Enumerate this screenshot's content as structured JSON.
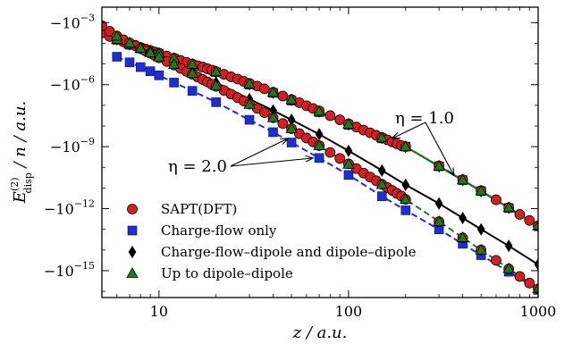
{
  "chart_data": {
    "type": "scatter",
    "xlabel": "z / a.u.",
    "ylabel_main": "E",
    "ylabel_sup": "(2)",
    "ylabel_sub": "disp",
    "ylabel_rest": " / n / a.u.",
    "x_scale": "log",
    "y_scale": "symlog-negative",
    "xlim": [
      5,
      1000
    ],
    "ylim_exponent": [
      -16.3,
      -2.25
    ],
    "grid": false,
    "legend_placement": "lower-left",
    "x_ticks": [
      {
        "value": 10,
        "label": "10"
      },
      {
        "value": 100,
        "label": "100"
      },
      {
        "value": 1000,
        "label": "1000"
      }
    ],
    "y_ticks": [
      {
        "exponent": -3,
        "base": "−10",
        "sup": "−3"
      },
      {
        "exponent": -6,
        "base": "−10",
        "sup": "−6"
      },
      {
        "exponent": -9,
        "base": "−10",
        "sup": "−9"
      },
      {
        "exponent": -12,
        "base": "−10",
        "sup": "−12"
      },
      {
        "exponent": -15,
        "base": "−10",
        "sup": "−15"
      }
    ],
    "legend": [
      {
        "label": "SAPT(DFT)",
        "marker": "circle",
        "color": "#d62020"
      },
      {
        "label": "Charge-flow only",
        "marker": "square",
        "color": "#1c2fd0"
      },
      {
        "label": "Charge-flow–dipole and dipole–dipole",
        "marker": "diamond",
        "color": "#000000"
      },
      {
        "label": "Up to dipole–dipole",
        "marker": "triangle",
        "color": "#1a7d1a"
      }
    ],
    "annotations": [
      {
        "label": "η = 1.0",
        "targets": [
          [
            170,
            -8.6
          ],
          [
            360,
            -10.4
          ]
        ]
      },
      {
        "label": "η = 2.0",
        "targets": [
          [
            48,
            -8.6
          ],
          [
            65,
            -9.55
          ]
        ]
      }
    ],
    "series": [
      {
        "name": "SAPT(DFT)",
        "group": "eta_1.0",
        "marker": "circle",
        "color": "#d62020",
        "x": [
          5,
          5.5,
          6,
          6.5,
          7,
          7.5,
          8,
          8.5,
          9,
          9.5,
          10,
          11,
          12,
          13,
          14,
          15,
          16,
          17,
          18,
          19,
          20,
          22,
          24,
          26,
          28,
          30,
          33,
          36,
          40,
          45,
          50,
          55,
          60,
          65,
          70,
          80,
          90,
          100,
          110,
          120,
          130,
          140,
          150,
          160,
          170,
          180,
          190,
          200,
          300,
          400,
          500,
          600,
          700,
          800,
          900,
          1000
        ],
        "y": [
          -3.5,
          -3.67,
          -3.8,
          -3.93,
          -4.02,
          -4.1,
          -4.2,
          -4.28,
          -4.35,
          -4.42,
          -4.48,
          -4.62,
          -4.72,
          -4.83,
          -4.92,
          -5.0,
          -5.08,
          -5.15,
          -5.23,
          -5.3,
          -5.37,
          -5.5,
          -5.62,
          -5.73,
          -5.84,
          -5.94,
          -6.07,
          -6.2,
          -6.37,
          -6.55,
          -6.72,
          -6.87,
          -7.02,
          -7.15,
          -7.27,
          -7.5,
          -7.7,
          -7.9,
          -8.05,
          -8.2,
          -8.33,
          -8.45,
          -8.56,
          -8.67,
          -8.77,
          -8.86,
          -8.95,
          -9.0,
          -9.93,
          -10.6,
          -11.13,
          -11.57,
          -11.95,
          -12.28,
          -12.57,
          -12.83
        ]
      },
      {
        "name": "Charge-flow only",
        "group": "eta_1.0",
        "marker": "square",
        "color": "#1c2fd0",
        "x": [
          6,
          7,
          8,
          9,
          10,
          12,
          15,
          20,
          30,
          40,
          50,
          70,
          100,
          150,
          200,
          300,
          400,
          500,
          700,
          1000
        ],
        "y": [
          -3.83,
          -4.07,
          -4.25,
          -4.4,
          -4.5,
          -4.75,
          -5.05,
          -5.4,
          -6.0,
          -6.4,
          -6.77,
          -7.33,
          -7.95,
          -8.6,
          -9.0,
          -9.95,
          -10.62,
          -11.15,
          -11.97,
          -12.85
        ]
      },
      {
        "name": "Charge-flow–dipole and dipole–dipole",
        "group": "eta_1.0",
        "marker": "diamond",
        "color": "#000000",
        "x": [
          6,
          7,
          8,
          9,
          10,
          12,
          15,
          20,
          30,
          40,
          50,
          70,
          100,
          150,
          200,
          300,
          400,
          500,
          700,
          1000
        ],
        "y": [
          -3.8,
          -4.05,
          -4.23,
          -4.37,
          -4.49,
          -4.73,
          -5.02,
          -5.38,
          -5.97,
          -6.38,
          -6.74,
          -7.3,
          -7.92,
          -8.58,
          -9.0,
          -9.95,
          -10.62,
          -11.15,
          -11.96,
          -12.84
        ]
      },
      {
        "name": "Up to dipole–dipole",
        "group": "eta_1.0",
        "marker": "triangle",
        "color": "#1a7d1a",
        "x": [
          6,
          7,
          8,
          9,
          10,
          12,
          15,
          20,
          30,
          40,
          50,
          70,
          100,
          150,
          200,
          300,
          400,
          500,
          700,
          1000
        ],
        "y": [
          -3.8,
          -4.04,
          -4.22,
          -4.37,
          -4.48,
          -4.72,
          -5.01,
          -5.37,
          -5.96,
          -6.37,
          -6.73,
          -7.29,
          -7.91,
          -8.57,
          -9.0,
          -9.94,
          -10.61,
          -11.14,
          -11.95,
          -12.83
        ]
      },
      {
        "name": "SAPT(DFT)",
        "group": "eta_2.0",
        "marker": "circle",
        "color": "#d62020",
        "x": [
          5,
          5.5,
          6,
          6.5,
          7,
          7.5,
          8,
          8.5,
          9,
          9.5,
          10,
          11,
          12,
          13,
          14,
          15,
          16,
          17,
          18,
          19,
          20,
          22,
          24,
          26,
          28,
          30,
          33,
          36,
          40,
          45,
          50,
          55,
          60,
          65,
          70,
          80,
          90,
          100,
          110,
          120,
          130,
          140,
          150,
          160,
          170,
          180,
          190,
          200,
          300,
          400,
          500,
          600,
          700,
          800,
          900,
          1000
        ],
        "y": [
          -3.15,
          -3.42,
          -3.65,
          -3.83,
          -3.98,
          -4.12,
          -4.25,
          -4.37,
          -4.48,
          -4.59,
          -4.7,
          -4.88,
          -5.05,
          -5.21,
          -5.36,
          -5.5,
          -5.63,
          -5.75,
          -5.87,
          -5.98,
          -6.08,
          -6.28,
          -6.46,
          -6.63,
          -6.79,
          -6.94,
          -7.15,
          -7.35,
          -7.6,
          -7.88,
          -8.13,
          -8.37,
          -8.58,
          -8.77,
          -8.95,
          -9.28,
          -9.57,
          -9.83,
          -10.06,
          -10.28,
          -10.47,
          -10.65,
          -10.82,
          -10.98,
          -11.12,
          -11.26,
          -11.39,
          -11.55,
          -12.63,
          -13.41,
          -14.0,
          -14.5,
          -14.92,
          -15.28,
          -15.6,
          -15.88
        ]
      },
      {
        "name": "Charge-flow only",
        "group": "eta_2.0",
        "marker": "square",
        "color": "#1c2fd0",
        "x": [
          6,
          7,
          8,
          9,
          10,
          12,
          15,
          20,
          30,
          40,
          50,
          70,
          100,
          150,
          200,
          300,
          400,
          500,
          700,
          1000
        ],
        "y": [
          -4.65,
          -4.92,
          -5.15,
          -5.35,
          -5.55,
          -5.9,
          -6.3,
          -6.85,
          -7.7,
          -8.3,
          -8.8,
          -9.55,
          -10.37,
          -11.4,
          -12.08,
          -13.0,
          -13.7,
          -14.25,
          -15.05,
          -15.93
        ]
      },
      {
        "name": "Charge-flow–dipole and dipole–dipole",
        "group": "eta_2.0",
        "marker": "diamond",
        "color": "#000000",
        "x": [
          6,
          7,
          8,
          9,
          10,
          12,
          15,
          20,
          30,
          40,
          50,
          70,
          100,
          150,
          200,
          300,
          400,
          500,
          700,
          1000
        ],
        "y": [
          -3.7,
          -4.0,
          -4.25,
          -4.45,
          -4.63,
          -4.98,
          -5.38,
          -5.9,
          -6.7,
          -7.25,
          -7.7,
          -8.4,
          -9.2,
          -10.15,
          -10.85,
          -11.75,
          -12.45,
          -13.0,
          -13.8,
          -14.7
        ]
      },
      {
        "name": "Up to dipole–dipole",
        "group": "eta_2.0",
        "marker": "triangle",
        "color": "#1a7d1a",
        "x": [
          6,
          7,
          8,
          9,
          10,
          12,
          15,
          20,
          30,
          40,
          50,
          70,
          100,
          150,
          200,
          300,
          400,
          500,
          700,
          1000
        ],
        "y": [
          -3.65,
          -3.98,
          -4.24,
          -4.46,
          -4.66,
          -5.02,
          -5.45,
          -6.05,
          -6.95,
          -7.6,
          -8.13,
          -8.95,
          -9.85,
          -10.83,
          -11.55,
          -12.62,
          -13.4,
          -14.0,
          -14.9,
          -15.88
        ]
      }
    ]
  }
}
